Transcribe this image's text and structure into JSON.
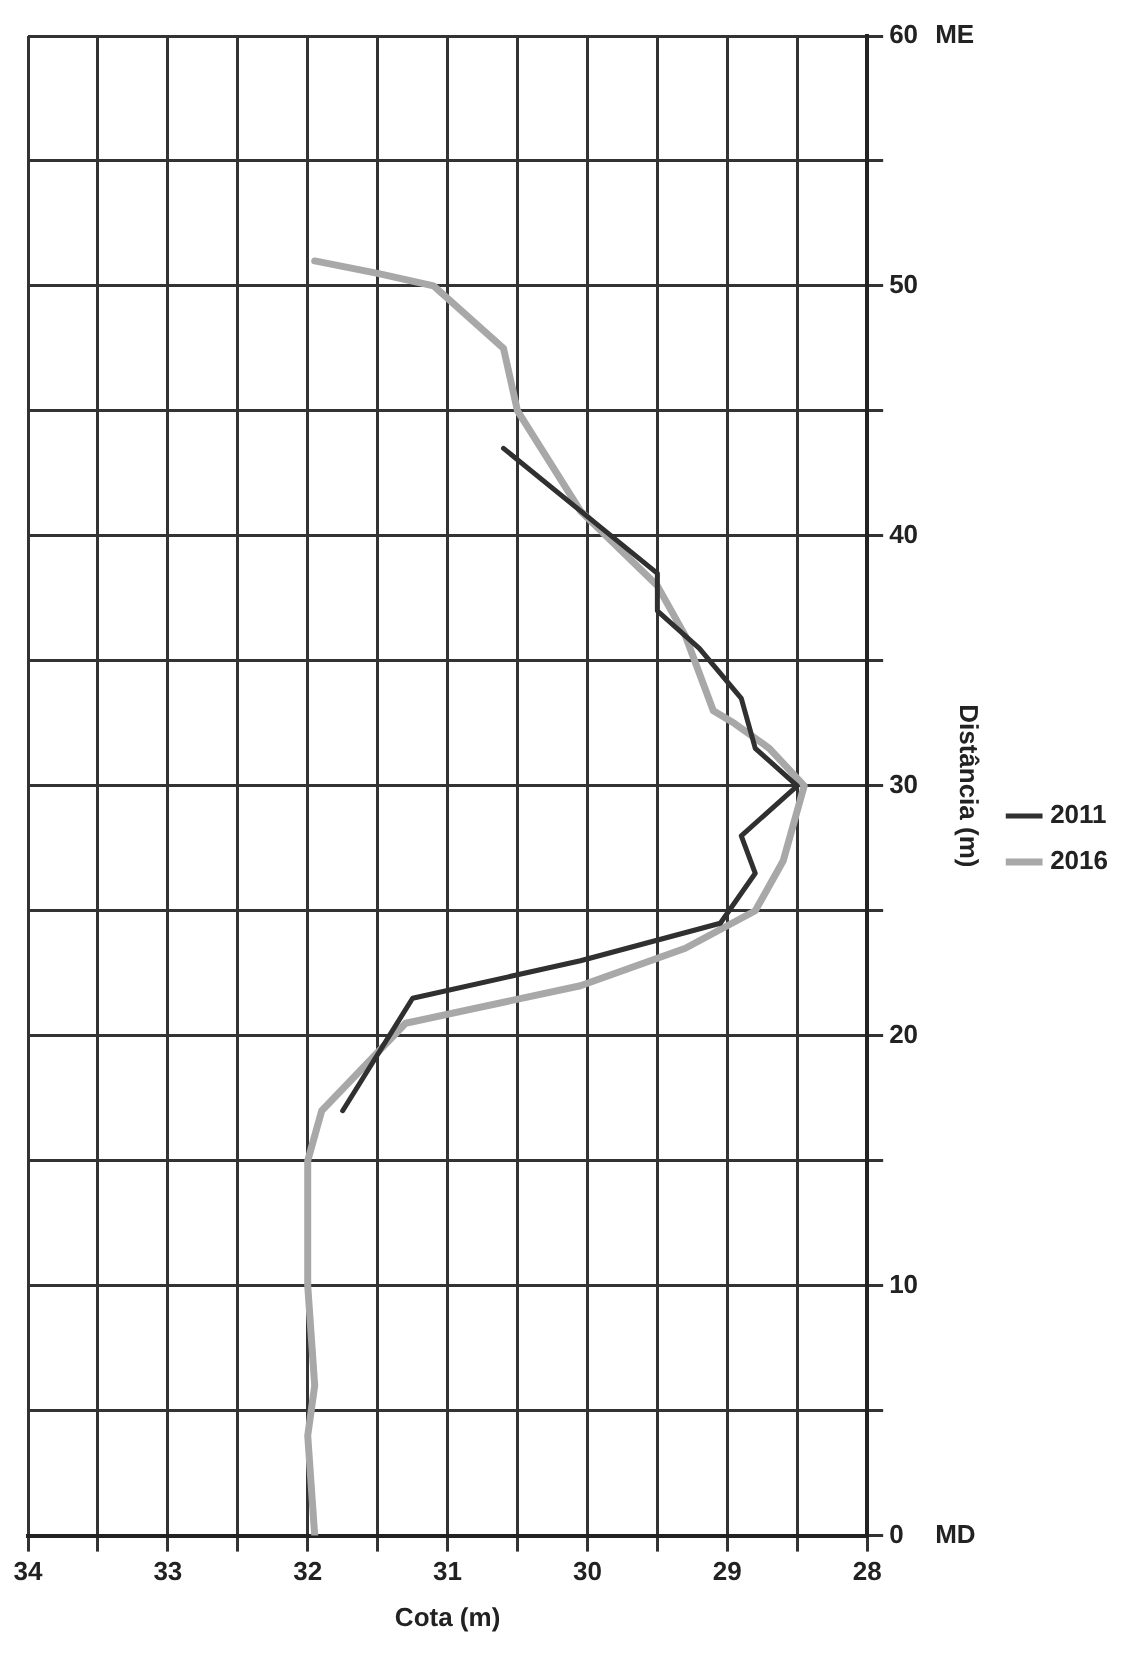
{
  "chart_data": {
    "type": "line",
    "xlabel": "Cota (m)",
    "ylabel": "Distância (m)",
    "xlim": [
      34,
      28
    ],
    "xticks": [
      34,
      {
        "value": 33.5,
        "label": null
      },
      33,
      {
        "value": 32.5,
        "label": null
      },
      32,
      {
        "value": 31.5,
        "label": null
      },
      31,
      {
        "value": 30.5,
        "label": null
      },
      30,
      {
        "value": 29.5,
        "label": null
      },
      29,
      {
        "value": 28.5,
        "label": null
      },
      28
    ],
    "ylim": [
      0,
      60
    ],
    "yticks": [
      0,
      {
        "value": 5,
        "label": null
      },
      10,
      {
        "value": 15,
        "label": null
      },
      20,
      {
        "value": 25,
        "label": null
      },
      30,
      {
        "value": 35,
        "label": null
      },
      40,
      {
        "value": 45,
        "label": null
      },
      50,
      {
        "value": 55,
        "label": null
      },
      60
    ],
    "grid": true,
    "legend": "right",
    "marker": "none",
    "line_style": "solid",
    "annotations": [
      "MD",
      "ME"
    ],
    "series": [
      {
        "name": "2011",
        "color": "#303030",
        "x": [
          31.75,
          31.25,
          30.05,
          29.05,
          28.8,
          28.9,
          28.5,
          28.8,
          28.9,
          29.2,
          29.5,
          29.5,
          30.05,
          30.6
        ],
        "values": [
          17,
          21.5,
          23,
          24.5,
          26.5,
          28,
          30,
          31.5,
          33.5,
          35.5,
          37,
          38.5,
          41,
          43.5
        ]
      },
      {
        "name": "2016",
        "color": "#a8a8a8",
        "x": [
          31.95,
          32.0,
          31.95,
          32.0,
          32.0,
          31.9,
          31.3,
          30.05,
          29.3,
          28.8,
          28.6,
          28.45,
          28.7,
          28.95,
          29.1,
          29.3,
          29.5,
          30.05,
          30.5,
          30.6,
          30.8,
          31.1,
          31.5,
          31.95
        ],
        "values": [
          0,
          4,
          6,
          10,
          15,
          17,
          20.5,
          22,
          23.5,
          25,
          27,
          30,
          31.5,
          32.5,
          33,
          36,
          38,
          41,
          45,
          47.5,
          48.5,
          50,
          50.5,
          51
        ]
      }
    ]
  }
}
